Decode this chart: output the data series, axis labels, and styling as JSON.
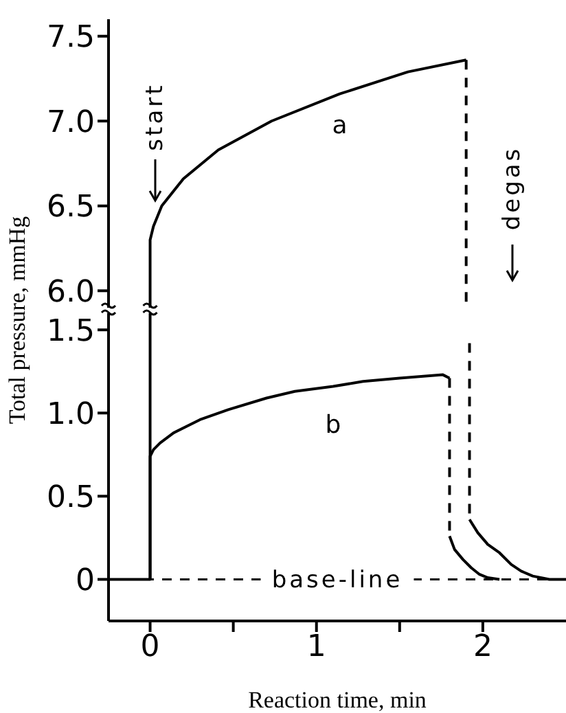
{
  "chart_data": [
    {
      "type": "line",
      "xlim": [
        -0.25,
        2.5
      ],
      "ylim": [
        5.9,
        7.6
      ],
      "tick_labels": "y",
      "yticks": [
        {
          "value": 6,
          "label": "6.0"
        },
        6.5,
        {
          "value": 7,
          "label": "7.0"
        },
        7.5
      ],
      "ylabel": "Total pressure, mmHg",
      "series": [
        {
          "name": "a",
          "color": "#000000",
          "line_style": "solid",
          "x": [
            0,
            0,
            0.02,
            0.07,
            0.2,
            0.41,
            0.73,
            1.14,
            1.55,
            1.9
          ],
          "values": [
            5.9,
            6.3,
            6.38,
            6.5,
            6.66,
            6.83,
            7.0,
            7.16,
            7.29,
            7.36
          ]
        },
        {
          "color": "#000000",
          "line_style": "dashed",
          "x": [
            1.9,
            1.9
          ],
          "values": [
            7.36,
            5.9
          ]
        }
      ],
      "annotations": [
        "start",
        "degas"
      ]
    },
    {
      "type": "line",
      "xlim": [
        -0.25,
        2.5
      ],
      "ylim": [
        -0.25,
        1.6
      ],
      "xticks": [
        0,
        {
          "value": 0.5,
          "label": null
        },
        1,
        {
          "value": 1.5,
          "label": null
        },
        2
      ],
      "yticks": [
        0,
        0.5,
        {
          "value": 1,
          "label": "1.0"
        },
        1.5
      ],
      "xlabel": "Reaction time, min",
      "series": [
        {
          "color": "#000000",
          "line_style": "solid",
          "x": [
            -0.25,
            0,
            0
          ],
          "values": [
            0,
            0,
            1.6
          ]
        },
        {
          "color": "#000000",
          "line_style": "dashed",
          "x": [
            1.92,
            1.92
          ],
          "values": [
            1.42,
            0.36
          ]
        },
        {
          "color": "#000000",
          "line_style": "solid",
          "x": [
            1.92,
            1.97,
            2.03,
            2.1,
            2.17,
            2.23,
            2.3,
            2.4,
            2.5
          ],
          "values": [
            0.36,
            0.28,
            0.21,
            0.16,
            0.09,
            0.05,
            0.02,
            0,
            0
          ]
        },
        {
          "name": "b",
          "color": "#000000",
          "line_style": "solid",
          "x": [
            0,
            0,
            0.02,
            0.06,
            0.14,
            0.3,
            0.47,
            0.7,
            0.87,
            1.1,
            1.28,
            1.5,
            1.76,
            1.8
          ],
          "values": [
            0,
            0.74,
            0.78,
            0.82,
            0.88,
            0.96,
            1.02,
            1.09,
            1.13,
            1.16,
            1.19,
            1.21,
            1.23,
            1.21
          ]
        },
        {
          "color": "#000000",
          "line_style": "dashed",
          "x": [
            1.8,
            1.8
          ],
          "values": [
            1.21,
            0.26
          ]
        },
        {
          "color": "#000000",
          "line_style": "solid",
          "x": [
            1.8,
            1.83,
            1.88,
            1.93,
            1.98,
            2.03,
            2.1
          ],
          "values": [
            0.26,
            0.18,
            0.12,
            0.07,
            0.03,
            0.01,
            0
          ]
        }
      ],
      "ref_lines": [
        {
          "axis": "y",
          "value": 0,
          "label": "base-line",
          "line_style": "dashed",
          "color": "#000000"
        }
      ]
    }
  ]
}
